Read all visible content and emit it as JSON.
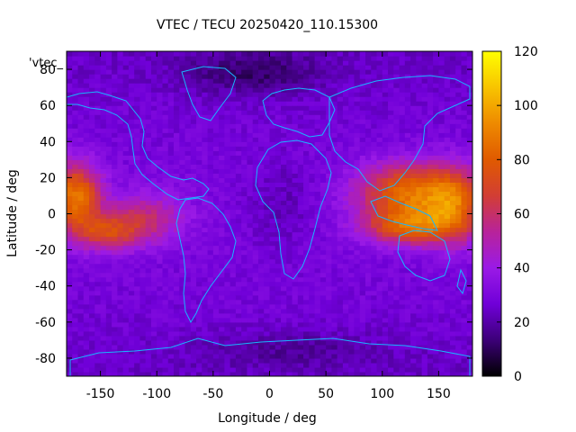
{
  "chart_data": {
    "type": "heatmap",
    "title": "VTEC / TECU 20250420_110.15300",
    "xlabel": "Longitude / deg",
    "ylabel": "Latitude / deg",
    "key_label": "'vtec_",
    "xlim": [
      -180,
      180
    ],
    "ylim": [
      -90,
      90
    ],
    "clim": [
      0,
      120
    ],
    "colormap": "gnuplot pm3d (black-purple-red-orange-yellow)",
    "xticks": [
      -150,
      -100,
      -50,
      0,
      50,
      100,
      150
    ],
    "yticks": [
      -80,
      -60,
      -40,
      -20,
      0,
      20,
      40,
      60,
      80
    ],
    "cbticks": [
      0,
      20,
      40,
      60,
      80,
      100,
      120
    ],
    "grid": {
      "lon_step": 5,
      "lat_step": 2.5,
      "description": "global VTEC map, values in TECU"
    },
    "features": [
      {
        "lon": -172,
        "lat": 10,
        "width_deg": 22,
        "height_deg": 18,
        "peak": 58
      },
      {
        "lon": -145,
        "lat": -10,
        "width_deg": 30,
        "height_deg": 10,
        "peak": 35
      },
      {
        "lon": -110,
        "lat": -2,
        "width_deg": 35,
        "height_deg": 14,
        "peak": 26
      },
      {
        "lon": 125,
        "lat": 12,
        "width_deg": 45,
        "height_deg": 16,
        "peak": 55
      },
      {
        "lon": 125,
        "lat": -7,
        "width_deg": 40,
        "height_deg": 10,
        "peak": 45
      },
      {
        "lon": 165,
        "lat": 5,
        "width_deg": 25,
        "height_deg": 20,
        "peak": 40
      },
      {
        "lon": -15,
        "lat": 78,
        "width_deg": 60,
        "height_deg": 12,
        "peak": -14
      },
      {
        "lon": 20,
        "lat": -75,
        "width_deg": 80,
        "height_deg": 10,
        "peak": -8
      },
      {
        "lon": 10,
        "lat": 5,
        "width_deg": 30,
        "height_deg": 25,
        "peak": -8
      }
    ],
    "background": {
      "base": 24,
      "equatorial_gain": 6
    }
  },
  "colorbar_gradient": [
    "#000000",
    "#3c0078",
    "#7000d8",
    "#9a1ae6",
    "#b8239a",
    "#d23e34",
    "#e05a00",
    "#ee8a00",
    "#f8c400",
    "#ffff00"
  ],
  "coastline_color": "#19b6ff",
  "axis_color": "#000000"
}
